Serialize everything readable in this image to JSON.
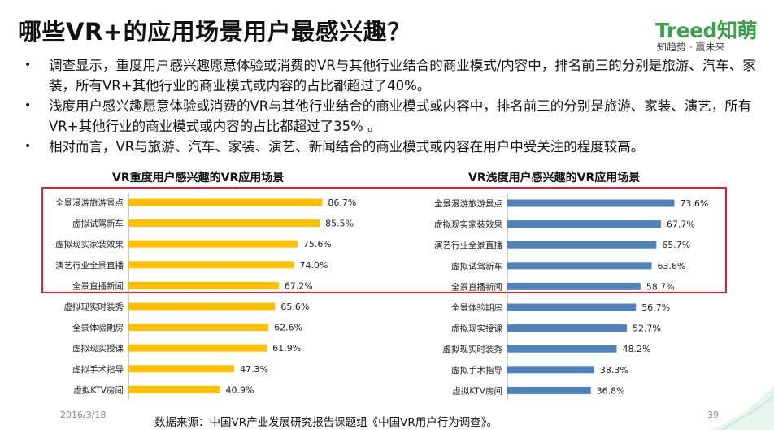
{
  "title": "哪些VR+的应用场景用户最感兴趣？",
  "logo": {
    "main": "Treed知萌",
    "sub": "知趋势 · 赢未来"
  },
  "bullets": [
    "调查显示，重度用户感兴趣愿意体验或消费的VR与其他行业结合的商业模式/内容中，排名前三的分别是旅游、汽车、家装，所有VR+其他行业的商业模式或内容的占比都超过了40%。",
    "浅度用户感兴趣愿意体验或消费的VR与其他行业结合的商业模式或内容中，排名前三的分别是旅游、家装、演艺，所有VR+其他行业的商业模式或内容的占比都超过了35% 。",
    "相对而言，VR与旅游、汽车、家装、演艺、新闻结合的商业模式或内容在用户中受关注的程度较高。"
  ],
  "footer": {
    "date": "2016/3/18",
    "source": "数据来源：中国VR产业发展研究报告课题组《中国VR用户行为调查》。",
    "page": "39"
  },
  "colors": {
    "heavy": "#FFC000",
    "light": "#4F81BD",
    "highlight": "#E0202E"
  },
  "chart_data": [
    {
      "type": "bar",
      "orientation": "horizontal",
      "title": "VR重度用户感兴趣的VR应用场景",
      "categories": [
        "全景漫游旅游景点",
        "虚拟试驾新车",
        "虚拟现实家装效果",
        "演艺行业全景直播",
        "全景直播新闻",
        "虚拟现实时装秀",
        "全景体验期房",
        "虚拟现实授课",
        "虚拟手术指导",
        "虚拟KTV房间"
      ],
      "values": [
        86.7,
        85.5,
        75.6,
        74.0,
        67.2,
        65.6,
        62.6,
        61.9,
        47.3,
        40.9
      ],
      "labels": [
        "86.7%",
        "85.5%",
        "75.6%",
        "74.0%",
        "67.2%",
        "65.6%",
        "62.6%",
        "61.9%",
        "47.3%",
        "40.9%"
      ],
      "xlim": [
        0,
        100
      ],
      "grid": false
    },
    {
      "type": "bar",
      "orientation": "horizontal",
      "title": "VR浅度用户感兴趣的VR应用场景",
      "categories": [
        "全景漫游旅游景点",
        "虚拟现实家装效果",
        "演艺行业全景直播",
        "虚拟试驾新车",
        "全景直播新闻",
        "全景体验期房",
        "虚拟现实授课",
        "虚拟现实时装秀",
        "虚拟手术指导",
        "虚拟KTV房间"
      ],
      "values": [
        73.6,
        67.7,
        65.7,
        63.6,
        58.7,
        56.7,
        52.7,
        48.2,
        38.3,
        36.8
      ],
      "labels": [
        "73.6%",
        "67.7%",
        "65.7%",
        "63.6%",
        "58.7%",
        "56.7%",
        "52.7%",
        "48.2%",
        "38.3%",
        "36.8%"
      ],
      "xlim": [
        0,
        100
      ],
      "grid": false
    }
  ]
}
